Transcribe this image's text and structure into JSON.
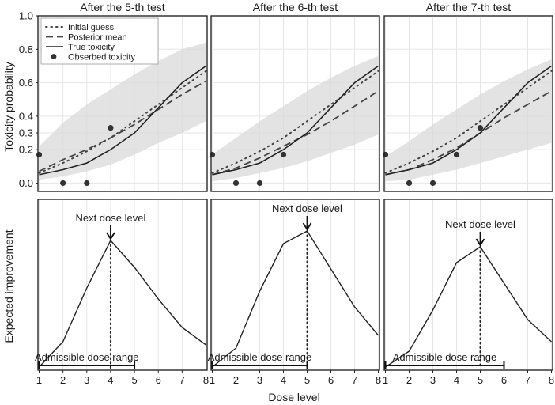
{
  "chart_data": {
    "type": "line",
    "xlabel": "Dose level",
    "x": [
      1,
      2,
      3,
      4,
      5,
      6,
      7,
      8
    ],
    "xlim": [
      0.95,
      8.05
    ],
    "toxicity_ylabel": "Toxicity probability",
    "toxicity_yticks": [
      "0.0",
      "0.2",
      "0.3",
      "0.4",
      "0.6",
      "0.8",
      "1.0"
    ],
    "toxicity_yvalues": [
      0.0,
      0.2,
      0.3,
      0.4,
      0.6,
      0.8,
      1.0
    ],
    "toxicity_ylim": [
      -0.05,
      1.0
    ],
    "target_toxicity": 0.3,
    "ei_ylabel": "Expected improvement",
    "ei_ylim": [
      0,
      1.08
    ],
    "legend": {
      "initial": "Initial guess",
      "posterior": "Posterior mean",
      "true": "True toxicity",
      "observed": "Obserbed toxicity"
    },
    "next_label": "Next dose level",
    "range_label": "Admissible dose range",
    "true_toxicity": [
      0.05,
      0.08,
      0.12,
      0.2,
      0.3,
      0.45,
      0.6,
      0.7
    ],
    "initial_guess": [
      0.06,
      0.12,
      0.19,
      0.27,
      0.37,
      0.47,
      0.57,
      0.67
    ],
    "panels": [
      {
        "title": "After the 5-th test",
        "posterior": [
          0.07,
          0.14,
          0.2,
          0.27,
          0.35,
          0.44,
          0.53,
          0.61
        ],
        "band_lower": [
          0.02,
          0.04,
          0.07,
          0.11,
          0.17,
          0.24,
          0.3,
          0.37
        ],
        "band_upper": [
          0.22,
          0.36,
          0.47,
          0.56,
          0.65,
          0.73,
          0.8,
          0.84
        ],
        "observed_doses": [
          1,
          2,
          3,
          4
        ],
        "observed_tox": [
          0.17,
          0.0,
          0.0,
          0.33
        ],
        "ei": [
          0.02,
          0.18,
          0.52,
          0.82,
          0.65,
          0.45,
          0.27,
          0.16
        ],
        "next_dose": 4,
        "range": [
          1,
          5
        ]
      },
      {
        "title": "After the 6-th test",
        "posterior": [
          0.05,
          0.09,
          0.15,
          0.22,
          0.29,
          0.37,
          0.46,
          0.55
        ],
        "band_lower": [
          0.01,
          0.03,
          0.06,
          0.09,
          0.13,
          0.18,
          0.23,
          0.29
        ],
        "band_upper": [
          0.17,
          0.27,
          0.37,
          0.46,
          0.55,
          0.63,
          0.7,
          0.76
        ],
        "observed_doses": [
          1,
          2,
          3,
          4
        ],
        "observed_tox": [
          0.17,
          0.0,
          0.0,
          0.17
        ],
        "ei": [
          0.02,
          0.14,
          0.5,
          0.8,
          0.88,
          0.64,
          0.4,
          0.22
        ],
        "next_dose": 5,
        "range": [
          1,
          5
        ]
      },
      {
        "title": "After the 7-th test",
        "posterior": [
          0.05,
          0.08,
          0.14,
          0.21,
          0.3,
          0.39,
          0.47,
          0.55
        ],
        "band_lower": [
          0.01,
          0.02,
          0.05,
          0.08,
          0.12,
          0.16,
          0.2,
          0.24
        ],
        "band_upper": [
          0.16,
          0.25,
          0.35,
          0.44,
          0.53,
          0.61,
          0.68,
          0.74
        ],
        "observed_doses": [
          1,
          2,
          3,
          4,
          5
        ],
        "observed_tox": [
          0.17,
          0.0,
          0.0,
          0.17,
          0.33
        ],
        "ei": [
          0.02,
          0.12,
          0.38,
          0.68,
          0.78,
          0.55,
          0.32,
          0.18
        ],
        "next_dose": 5,
        "range": [
          1,
          6
        ]
      }
    ]
  }
}
